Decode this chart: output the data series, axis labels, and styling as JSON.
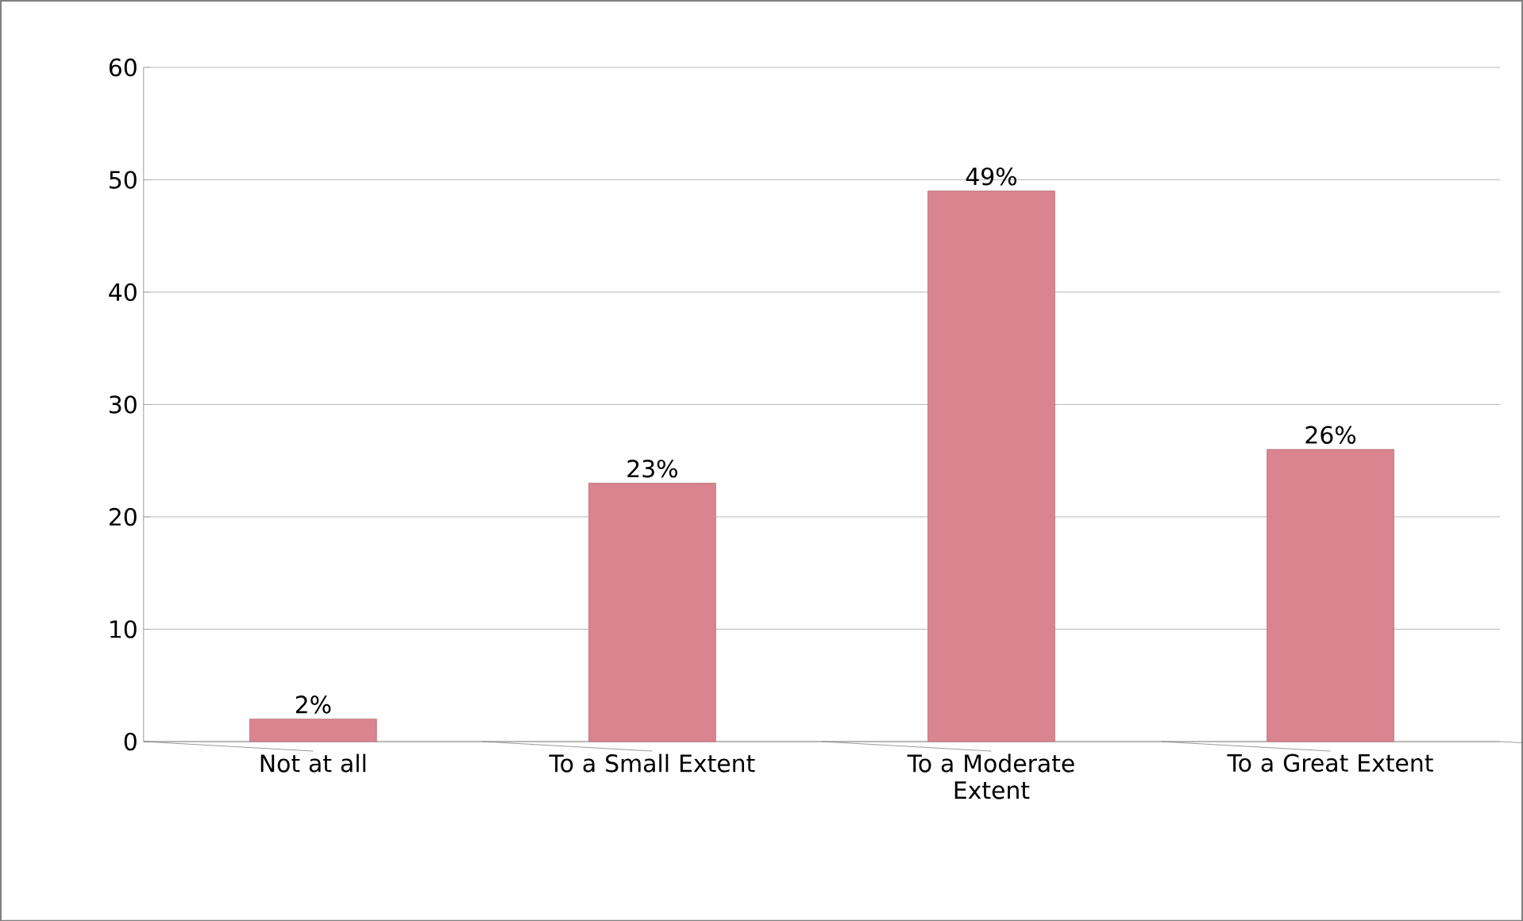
{
  "chart_data": {
    "type": "bar",
    "categories": [
      "Not at all",
      "To a Small Extent",
      "To a Moderate Extent",
      "To a Great Extent"
    ],
    "values": [
      2,
      23,
      49,
      26
    ],
    "value_labels": [
      "2%",
      "23%",
      "49%",
      "26%"
    ],
    "color": "#d9848f",
    "ylim": [
      0,
      60
    ],
    "yticks": [
      0,
      10,
      20,
      30,
      40,
      50,
      60
    ],
    "grid": "y"
  }
}
